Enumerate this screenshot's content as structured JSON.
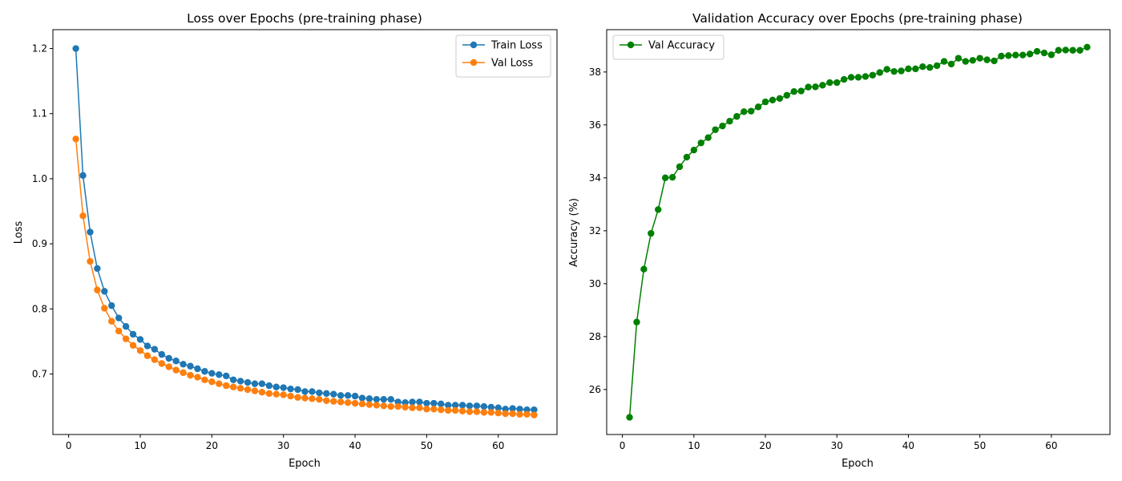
{
  "chart_data": [
    {
      "type": "line",
      "title": "Loss over Epochs (pre-training phase)",
      "xlabel": "Epoch",
      "ylabel": "Loss",
      "xlim": [
        -2.2,
        68.2
      ],
      "ylim": [
        0.607,
        1.229
      ],
      "xticks": [
        0,
        10,
        20,
        30,
        40,
        50,
        60
      ],
      "yticks": [
        0.7,
        0.8,
        0.9,
        1.0,
        1.1,
        1.2
      ],
      "ytick_decimals": 1,
      "grid": false,
      "legend_position": "top-right",
      "x": [
        1,
        2,
        3,
        4,
        5,
        6,
        7,
        8,
        9,
        10,
        11,
        12,
        13,
        14,
        15,
        16,
        17,
        18,
        19,
        20,
        21,
        22,
        23,
        24,
        25,
        26,
        27,
        28,
        29,
        30,
        31,
        32,
        33,
        34,
        35,
        36,
        37,
        38,
        39,
        40,
        41,
        42,
        43,
        44,
        45,
        46,
        47,
        48,
        49,
        50,
        51,
        52,
        53,
        54,
        55,
        56,
        57,
        58,
        59,
        60,
        61,
        62,
        63,
        64,
        65
      ],
      "series": [
        {
          "name": "Train Loss",
          "color": "#1f77b4",
          "values": [
            1.2,
            1.005,
            0.918,
            0.862,
            0.827,
            0.805,
            0.786,
            0.773,
            0.761,
            0.753,
            0.743,
            0.738,
            0.73,
            0.724,
            0.72,
            0.715,
            0.712,
            0.708,
            0.704,
            0.701,
            0.699,
            0.697,
            0.691,
            0.689,
            0.687,
            0.685,
            0.685,
            0.682,
            0.68,
            0.679,
            0.677,
            0.676,
            0.673,
            0.673,
            0.671,
            0.67,
            0.669,
            0.667,
            0.667,
            0.666,
            0.663,
            0.662,
            0.661,
            0.661,
            0.661,
            0.657,
            0.656,
            0.657,
            0.657,
            0.655,
            0.655,
            0.654,
            0.652,
            0.652,
            0.652,
            0.651,
            0.651,
            0.65,
            0.649,
            0.648,
            0.646,
            0.647,
            0.646,
            0.645,
            0.645
          ]
        },
        {
          "name": "Val Loss",
          "color": "#ff7f0e",
          "values": [
            1.061,
            0.943,
            0.873,
            0.829,
            0.801,
            0.781,
            0.766,
            0.754,
            0.744,
            0.736,
            0.728,
            0.722,
            0.716,
            0.711,
            0.706,
            0.702,
            0.698,
            0.695,
            0.691,
            0.688,
            0.685,
            0.682,
            0.68,
            0.678,
            0.676,
            0.674,
            0.672,
            0.67,
            0.669,
            0.668,
            0.666,
            0.664,
            0.663,
            0.662,
            0.661,
            0.659,
            0.658,
            0.657,
            0.656,
            0.655,
            0.654,
            0.653,
            0.652,
            0.651,
            0.65,
            0.65,
            0.649,
            0.648,
            0.648,
            0.646,
            0.646,
            0.645,
            0.644,
            0.644,
            0.643,
            0.642,
            0.642,
            0.641,
            0.641,
            0.64,
            0.639,
            0.639,
            0.638,
            0.638,
            0.637
          ]
        }
      ]
    },
    {
      "type": "line",
      "title": "Validation Accuracy over Epochs (pre-training phase)",
      "xlabel": "Epoch",
      "ylabel": "Accuracy (%)",
      "xlim": [
        -2.2,
        68.2
      ],
      "ylim": [
        24.3,
        39.6
      ],
      "xticks": [
        0,
        10,
        20,
        30,
        40,
        50,
        60
      ],
      "yticks": [
        26,
        28,
        30,
        32,
        34,
        36,
        38
      ],
      "ytick_decimals": 0,
      "grid": false,
      "legend_position": "top-left",
      "x": [
        1,
        2,
        3,
        4,
        5,
        6,
        7,
        8,
        9,
        10,
        11,
        12,
        13,
        14,
        15,
        16,
        17,
        18,
        19,
        20,
        21,
        22,
        23,
        24,
        25,
        26,
        27,
        28,
        29,
        30,
        31,
        32,
        33,
        34,
        35,
        36,
        37,
        38,
        39,
        40,
        41,
        42,
        43,
        44,
        45,
        46,
        47,
        48,
        49,
        50,
        51,
        52,
        53,
        54,
        55,
        56,
        57,
        58,
        59,
        60,
        61,
        62,
        63,
        64,
        65
      ],
      "series": [
        {
          "name": "Val Accuracy",
          "color": "#008000",
          "values": [
            24.95,
            28.55,
            30.55,
            31.9,
            32.8,
            34.0,
            34.02,
            34.42,
            34.78,
            35.05,
            35.32,
            35.52,
            35.82,
            35.96,
            36.14,
            36.32,
            36.5,
            36.52,
            36.68,
            36.87,
            36.94,
            37.0,
            37.12,
            37.26,
            37.28,
            37.43,
            37.44,
            37.5,
            37.6,
            37.6,
            37.72,
            37.8,
            37.8,
            37.83,
            37.88,
            37.98,
            38.1,
            38.02,
            38.04,
            38.12,
            38.12,
            38.2,
            38.17,
            38.24,
            38.4,
            38.3,
            38.52,
            38.4,
            38.44,
            38.52,
            38.46,
            38.42,
            38.6,
            38.62,
            38.64,
            38.64,
            38.68,
            38.78,
            38.72,
            38.65,
            38.82,
            38.83,
            38.82,
            38.82,
            38.94
          ]
        }
      ]
    }
  ]
}
